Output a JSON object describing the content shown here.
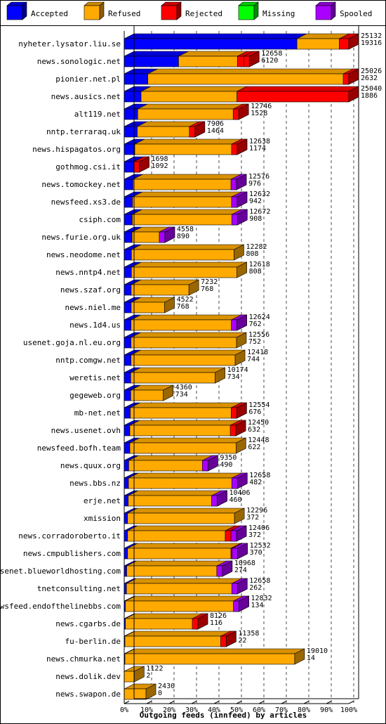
{
  "chart_data": {
    "type": "bar",
    "orientation": "horizontal",
    "stacked": true,
    "style": "3d",
    "title": "",
    "xlabel": "Outgoing feeds (innfeed) by articles",
    "ylabel": "",
    "xlim": [
      0,
      100
    ],
    "x_unit": "%",
    "x_ticks": [
      "0%",
      "10%",
      "20%",
      "30%",
      "40%",
      "50%",
      "60%",
      "70%",
      "80%",
      "90%",
      "100%"
    ],
    "grid": "vertical dashed",
    "legend_position": "top",
    "series": [
      {
        "name": "Accepted",
        "color": "#0000ff"
      },
      {
        "name": "Refused",
        "color": "#ffaa00"
      },
      {
        "name": "Rejected",
        "color": "#ff0000"
      },
      {
        "name": "Missing",
        "color": "#00ff00"
      },
      {
        "name": "Spooled",
        "color": "#aa00ff"
      }
    ],
    "rows": [
      {
        "label": "nyheter.lysator.liu.se",
        "total": "25132",
        "accepted_count": "19316",
        "pct": [
          76.9,
          18.9,
          4.2,
          0,
          0
        ]
      },
      {
        "label": "news.sonologic.net",
        "total": "12658",
        "accepted_count": "6120",
        "pct": [
          24.2,
          26.2,
          5.3,
          0,
          0
        ]
      },
      {
        "label": "pionier.net.pl",
        "total": "25026",
        "accepted_count": "2632",
        "pct": [
          10.5,
          89.5,
          0,
          0,
          0
        ]
      },
      {
        "label": "news.ausics.net",
        "total": "25040",
        "accepted_count": "1886",
        "pct": [
          7.5,
          42.7,
          49.8,
          0,
          0
        ]
      },
      {
        "label": "alt119.net",
        "total": "12746",
        "accepted_count": "1528",
        "pct": [
          6.0,
          44.5,
          0.5,
          0,
          0
        ]
      },
      {
        "label": "nntp.terraraq.uk",
        "total": "7906",
        "accepted_count": "1464",
        "pct": [
          5.8,
          25.7,
          0,
          0,
          0
        ]
      },
      {
        "label": "news.hispagatos.org",
        "total": "12638",
        "accepted_count": "1174",
        "pct": [
          4.7,
          45.6,
          0,
          0,
          0
        ]
      },
      {
        "label": "gothmog.csi.it",
        "total": "1698",
        "accepted_count": "1092",
        "pct": [
          4.3,
          2.4,
          0,
          0,
          0
        ]
      },
      {
        "label": "news.tomockey.net",
        "total": "12576",
        "accepted_count": "976",
        "pct": [
          3.9,
          46.1,
          0,
          0,
          0
        ]
      },
      {
        "label": "newsfeed.xs3.de",
        "total": "12632",
        "accepted_count": "942",
        "pct": [
          3.7,
          46.6,
          0,
          0,
          0
        ]
      },
      {
        "label": "csiph.com",
        "total": "12672",
        "accepted_count": "908",
        "pct": [
          3.6,
          46.8,
          0,
          0,
          0
        ]
      },
      {
        "label": "news.furie.org.uk",
        "total": "4558",
        "accepted_count": "890",
        "pct": [
          3.5,
          14.6,
          0,
          0,
          0
        ]
      },
      {
        "label": "news.neodome.net",
        "total": "12282",
        "accepted_count": "808",
        "pct": [
          3.2,
          45.7,
          0,
          0,
          0
        ]
      },
      {
        "label": "news.nntp4.net",
        "total": "12618",
        "accepted_count": "808",
        "pct": [
          3.2,
          47.0,
          0,
          0,
          0
        ]
      },
      {
        "label": "news.szaf.org",
        "total": "7232",
        "accepted_count": "768",
        "pct": [
          3.1,
          25.7,
          0,
          0,
          0
        ]
      },
      {
        "label": "news.niel.me",
        "total": "4522",
        "accepted_count": "768",
        "pct": [
          3.1,
          14.9,
          0,
          0,
          0
        ]
      },
      {
        "label": "news.1d4.us",
        "total": "12624",
        "accepted_count": "762",
        "pct": [
          3.0,
          47.2,
          0,
          0,
          0
        ]
      },
      {
        "label": "usenet.goja.nl.eu.org",
        "total": "12556",
        "accepted_count": "752",
        "pct": [
          3.0,
          47.0,
          0,
          0,
          0
        ]
      },
      {
        "label": "nntp.comgw.net",
        "total": "12418",
        "accepted_count": "744",
        "pct": [
          3.0,
          46.4,
          0,
          0,
          0
        ]
      },
      {
        "label": "weretis.net",
        "total": "10174",
        "accepted_count": "734",
        "pct": [
          2.9,
          37.6,
          0,
          0,
          0
        ]
      },
      {
        "label": "gegeweb.org",
        "total": "4360",
        "accepted_count": "734",
        "pct": [
          2.9,
          14.5,
          0,
          0,
          0
        ]
      },
      {
        "label": "mb-net.net",
        "total": "12554",
        "accepted_count": "676",
        "pct": [
          2.7,
          47.4,
          0,
          0,
          0
        ]
      },
      {
        "label": "news.usenet.ovh",
        "total": "12450",
        "accepted_count": "632",
        "pct": [
          2.5,
          47.2,
          0,
          0,
          0
        ]
      },
      {
        "label": "newsfeed.bofh.team",
        "total": "12448",
        "accepted_count": "622",
        "pct": [
          2.5,
          47.3,
          0,
          0,
          0
        ]
      },
      {
        "label": "news.quux.org",
        "total": "9350",
        "accepted_count": "490",
        "pct": [
          2.0,
          35.3,
          0,
          0,
          0
        ]
      },
      {
        "label": "news.bbs.nz",
        "total": "12658",
        "accepted_count": "482",
        "pct": [
          1.9,
          48.5,
          0,
          0,
          0
        ]
      },
      {
        "label": "erje.net",
        "total": "10406",
        "accepted_count": "460",
        "pct": [
          1.8,
          39.6,
          0,
          0,
          0
        ]
      },
      {
        "label": "xmission",
        "total": "12296",
        "accepted_count": "372",
        "pct": [
          1.5,
          47.6,
          0,
          0,
          0
        ]
      },
      {
        "label": "news.corradoroberto.it",
        "total": "12406",
        "accepted_count": "372",
        "pct": [
          1.5,
          43.5,
          5.0,
          0,
          0
        ]
      },
      {
        "label": "news.cmpublishers.com",
        "total": "12532",
        "accepted_count": "370",
        "pct": [
          1.5,
          46.0,
          3.0,
          0,
          0
        ]
      },
      {
        "label": "usenet.blueworldhosting.com",
        "total": "10968",
        "accepted_count": "274",
        "pct": [
          1.1,
          42.6,
          0,
          0,
          0
        ]
      },
      {
        "label": "tnetconsulting.net",
        "total": "12658",
        "accepted_count": "262",
        "pct": [
          1.0,
          49.4,
          0,
          0,
          0
        ]
      },
      {
        "label": "newsfeed.endofthelinebbs.com",
        "total": "12832",
        "accepted_count": "134",
        "pct": [
          0.5,
          50.6,
          0,
          0,
          0
        ]
      },
      {
        "label": "news.cgarbs.de",
        "total": "8126",
        "accepted_count": "116",
        "pct": [
          0.5,
          32.3,
          0,
          0,
          0
        ]
      },
      {
        "label": "fu-berlin.de",
        "total": "11358",
        "accepted_count": "22",
        "pct": [
          0.1,
          45.1,
          0,
          0,
          0
        ]
      },
      {
        "label": "news.chmurka.net",
        "total": "19010",
        "accepted_count": "14",
        "pct": [
          0.1,
          75.6,
          0,
          0,
          0
        ]
      },
      {
        "label": "news.dolik.dev",
        "total": "1122",
        "accepted_count": "2",
        "pct": [
          0,
          4.5,
          0,
          0,
          0
        ]
      },
      {
        "label": "news.swapon.de",
        "total": "2430",
        "accepted_count": "0",
        "pct": [
          0,
          9.7,
          0,
          0,
          0
        ]
      }
    ],
    "end_colors": {
      "news.sonologic.net": "#ff0000",
      "pionier.net.pl": "#ff0000",
      "alt119.net": "#ff0000",
      "nntp.terraraq.uk": "#ff0000",
      "news.hispagatos.org": "#ff0000",
      "gothmog.csi.it": "#ff0000",
      "news.tomockey.net": "#aa00ff",
      "newsfeed.xs3.de": "#aa00ff",
      "csiph.com": "#aa00ff",
      "news.furie.org.uk": "#aa00ff",
      "news.1d4.us": "#aa00ff",
      "mb-net.net": "#ff0000",
      "news.usenet.ovh": "#ff0000",
      "news.quux.org": "#aa00ff",
      "news.bbs.nz": "#aa00ff",
      "erje.net": "#aa00ff",
      "news.corradoroberto.it": "#aa00ff",
      "news.cmpublishers.com": "#aa00ff",
      "usenet.blueworldhosting.com": "#aa00ff",
      "tnetconsulting.net": "#aa00ff",
      "newsfeed.endofthelinebbs.com": "#aa00ff",
      "news.cgarbs.de": "#ff0000",
      "fu-berlin.de": "#ff0000"
    }
  }
}
